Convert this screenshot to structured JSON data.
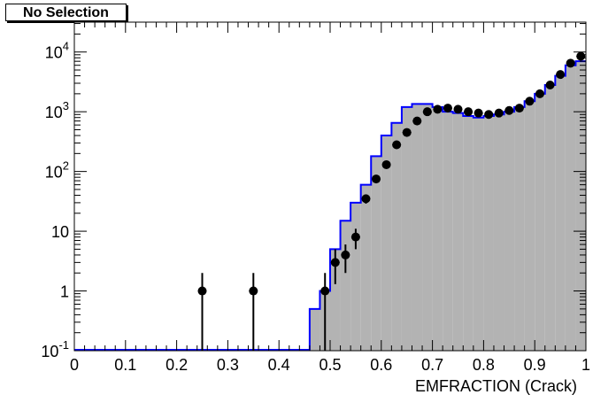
{
  "header": {
    "selection_label": "No Selection"
  },
  "chart_data": {
    "type": "histogram",
    "xlabel": "EMFRACTION (Crack)",
    "ylabel": "",
    "xlim": [
      0,
      1
    ],
    "ylim": [
      0.1,
      30000
    ],
    "log_y": true,
    "grid": false,
    "x_ticks": [
      "0",
      "0.1",
      "0.2",
      "0.3",
      "0.4",
      "0.5",
      "0.6",
      "0.7",
      "0.8",
      "0.9",
      "1"
    ],
    "y_ticks": [
      {
        "value": 0.1,
        "base": "10",
        "exp": "-1"
      },
      {
        "value": 1,
        "base": "1",
        "exp": ""
      },
      {
        "value": 10,
        "base": "10",
        "exp": ""
      },
      {
        "value": 100,
        "base": "10",
        "exp": "2"
      },
      {
        "value": 1000,
        "base": "10",
        "exp": "3"
      },
      {
        "value": 10000,
        "base": "10",
        "exp": "4"
      }
    ],
    "bin_width": 0.02,
    "colors": {
      "fill": "#b3b3b3",
      "outline": "#0000ff",
      "points": "#000000"
    },
    "histogram_bins": [
      {
        "x0": 0.46,
        "value": 0.5
      },
      {
        "x0": 0.48,
        "value": 1.0
      },
      {
        "x0": 0.5,
        "value": 5.0
      },
      {
        "x0": 0.52,
        "value": 15
      },
      {
        "x0": 0.54,
        "value": 30
      },
      {
        "x0": 0.56,
        "value": 60
      },
      {
        "x0": 0.58,
        "value": 180
      },
      {
        "x0": 0.6,
        "value": 400
      },
      {
        "x0": 0.62,
        "value": 650
      },
      {
        "x0": 0.64,
        "value": 1200
      },
      {
        "x0": 0.66,
        "value": 1350
      },
      {
        "x0": 0.68,
        "value": 1350
      },
      {
        "x0": 0.7,
        "value": 1200
      },
      {
        "x0": 0.72,
        "value": 1000
      },
      {
        "x0": 0.74,
        "value": 950
      },
      {
        "x0": 0.76,
        "value": 850
      },
      {
        "x0": 0.78,
        "value": 800
      },
      {
        "x0": 0.8,
        "value": 850
      },
      {
        "x0": 0.82,
        "value": 900
      },
      {
        "x0": 0.84,
        "value": 1000
      },
      {
        "x0": 0.86,
        "value": 1200
      },
      {
        "x0": 0.88,
        "value": 1500
      },
      {
        "x0": 0.9,
        "value": 2000
      },
      {
        "x0": 0.92,
        "value": 2800
      },
      {
        "x0": 0.94,
        "value": 4000
      },
      {
        "x0": 0.96,
        "value": 6000
      },
      {
        "x0": 0.98,
        "value": 7000
      }
    ],
    "data_points": [
      {
        "x": 0.25,
        "y": 1,
        "yerr_low": 0.1,
        "yerr_high": 2
      },
      {
        "x": 0.35,
        "y": 1,
        "yerr_low": 0.1,
        "yerr_high": 2
      },
      {
        "x": 0.49,
        "y": 1,
        "yerr_low": 0.1,
        "yerr_high": 2
      },
      {
        "x": 0.51,
        "y": 3,
        "yerr_low": 1.3,
        "yerr_high": 5
      },
      {
        "x": 0.53,
        "y": 4,
        "yerr_low": 2,
        "yerr_high": 6
      },
      {
        "x": 0.55,
        "y": 8,
        "yerr_low": 5,
        "yerr_high": 11
      },
      {
        "x": 0.57,
        "y": 35,
        "yerr_low": 29,
        "yerr_high": 41
      },
      {
        "x": 0.59,
        "y": 75,
        "yerr_low": 66,
        "yerr_high": 84
      },
      {
        "x": 0.61,
        "y": 130,
        "yerr_low": 118,
        "yerr_high": 142
      },
      {
        "x": 0.63,
        "y": 280,
        "yerr_low": 263,
        "yerr_high": 297
      },
      {
        "x": 0.65,
        "y": 450,
        "yerr_low": 429,
        "yerr_high": 471
      },
      {
        "x": 0.67,
        "y": 700,
        "yerr_low": 674,
        "yerr_high": 726
      },
      {
        "x": 0.69,
        "y": 1000,
        "yerr_low": 968,
        "yerr_high": 1032
      },
      {
        "x": 0.71,
        "y": 1100,
        "yerr_low": 1067,
        "yerr_high": 1133
      },
      {
        "x": 0.73,
        "y": 1150,
        "yerr_low": 1116,
        "yerr_high": 1184
      },
      {
        "x": 0.75,
        "y": 1100,
        "yerr_low": 1067,
        "yerr_high": 1133
      },
      {
        "x": 0.77,
        "y": 1000,
        "yerr_low": 968,
        "yerr_high": 1032
      },
      {
        "x": 0.79,
        "y": 950,
        "yerr_low": 919,
        "yerr_high": 981
      },
      {
        "x": 0.81,
        "y": 900,
        "yerr_low": 870,
        "yerr_high": 930
      },
      {
        "x": 0.83,
        "y": 950,
        "yerr_low": 919,
        "yerr_high": 981
      },
      {
        "x": 0.85,
        "y": 1050,
        "yerr_low": 1018,
        "yerr_high": 1082
      },
      {
        "x": 0.87,
        "y": 1150,
        "yerr_low": 1116,
        "yerr_high": 1184
      },
      {
        "x": 0.89,
        "y": 1500,
        "yerr_low": 1461,
        "yerr_high": 1539
      },
      {
        "x": 0.91,
        "y": 2000,
        "yerr_low": 1955,
        "yerr_high": 2045
      },
      {
        "x": 0.93,
        "y": 2800,
        "yerr_low": 2747,
        "yerr_high": 2853
      },
      {
        "x": 0.95,
        "y": 4200,
        "yerr_low": 4135,
        "yerr_high": 4265
      },
      {
        "x": 0.97,
        "y": 6500,
        "yerr_low": 6419,
        "yerr_high": 6581
      },
      {
        "x": 0.99,
        "y": 8500,
        "yerr_low": 8408,
        "yerr_high": 8592
      }
    ]
  }
}
